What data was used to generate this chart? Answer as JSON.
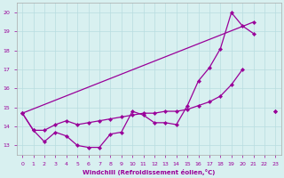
{
  "xlabel": "Windchill (Refroidissement éolien,°C)",
  "x": [
    0,
    1,
    2,
    3,
    4,
    5,
    6,
    7,
    8,
    9,
    10,
    11,
    12,
    13,
    14,
    15,
    16,
    17,
    18,
    19,
    20,
    21,
    22,
    23
  ],
  "line1_y": [
    14.7,
    13.8,
    13.2,
    13.7,
    13.5,
    13.0,
    12.9,
    12.9,
    13.6,
    13.7,
    14.8,
    14.6,
    14.2,
    14.2,
    14.1,
    15.1,
    16.4,
    17.1,
    18.1,
    20.0,
    19.3,
    18.9,
    null,
    14.8
  ],
  "line2_y": [
    14.7,
    13.8,
    13.8,
    14.1,
    14.3,
    14.1,
    14.2,
    14.3,
    14.4,
    14.5,
    14.6,
    14.7,
    14.7,
    14.8,
    14.8,
    14.9,
    15.1,
    15.3,
    15.6,
    16.2,
    17.0,
    null,
    null,
    14.8
  ],
  "line3_x": [
    0,
    21
  ],
  "line3_y": [
    14.7,
    19.5
  ],
  "line_color": "#990099",
  "bg_color": "#d8f0f0",
  "grid_color": "#b8dce0",
  "ylim": [
    12.5,
    20.5
  ],
  "xlim": [
    -0.5,
    23.5
  ],
  "yticks": [
    13,
    14,
    15,
    16,
    17,
    18,
    19,
    20
  ],
  "xticks": [
    0,
    1,
    2,
    3,
    4,
    5,
    6,
    7,
    8,
    9,
    10,
    11,
    12,
    13,
    14,
    15,
    16,
    17,
    18,
    19,
    20,
    21,
    22,
    23
  ]
}
